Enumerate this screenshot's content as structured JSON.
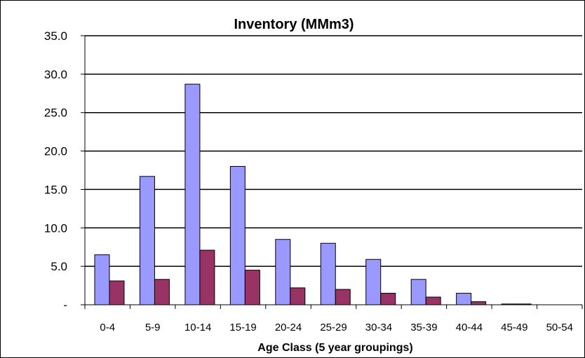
{
  "chart_data": {
    "type": "bar",
    "title": "Inventory (MMm3)",
    "xlabel": "Age Class (5 year groupings)",
    "ylabel": "",
    "ylim": [
      0,
      35
    ],
    "yticks": [
      0,
      5,
      10,
      15,
      20,
      25,
      30,
      35
    ],
    "ytick_labels": [
      "-",
      "5.0",
      "10.0",
      "15.0",
      "20.0",
      "25.0",
      "30.0",
      "35.0"
    ],
    "grid": true,
    "legend": "none",
    "categories": [
      "0-4",
      "5-9",
      "10-14",
      "15-19",
      "20-24",
      "25-29",
      "30-34",
      "35-39",
      "40-44",
      "45-49",
      "50-54"
    ],
    "series": [
      {
        "color": "#9999ff",
        "values": [
          6.5,
          16.7,
          28.7,
          18.0,
          8.5,
          8.0,
          5.9,
          3.3,
          1.5,
          0.1,
          0.0
        ]
      },
      {
        "color": "#993366",
        "values": [
          3.1,
          3.3,
          7.1,
          4.5,
          2.2,
          2.0,
          1.5,
          1.0,
          0.4,
          0.1,
          0.0
        ]
      }
    ]
  }
}
